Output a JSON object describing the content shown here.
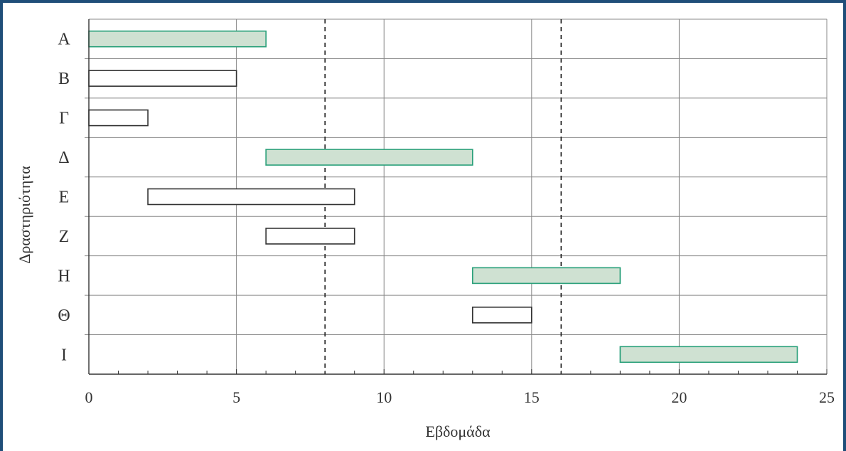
{
  "chart_data": {
    "type": "gantt",
    "xlabel": "Εβδομάδα",
    "ylabel": "Δραστηριότητα",
    "xlim": [
      0,
      25
    ],
    "xticks": [
      0,
      5,
      10,
      15,
      20,
      25
    ],
    "grid": true,
    "reference_lines": [
      8,
      16
    ],
    "colors": {
      "critical_fill": "#cfe1d2",
      "critical_stroke": "#2aa07a",
      "normal_fill": "#ffffff",
      "normal_stroke": "#333333",
      "grid": "#888888"
    },
    "tasks": [
      {
        "label": "A",
        "start": 0,
        "end": 6,
        "critical": true
      },
      {
        "label": "B",
        "start": 0,
        "end": 5,
        "critical": false
      },
      {
        "label": "Γ",
        "start": 0,
        "end": 2,
        "critical": false
      },
      {
        "label": "Δ",
        "start": 6,
        "end": 13,
        "critical": true
      },
      {
        "label": "E",
        "start": 2,
        "end": 9,
        "critical": false
      },
      {
        "label": "Z",
        "start": 6,
        "end": 9,
        "critical": false
      },
      {
        "label": "H",
        "start": 13,
        "end": 18,
        "critical": true
      },
      {
        "label": "Θ",
        "start": 13,
        "end": 15,
        "critical": false
      },
      {
        "label": "I",
        "start": 18,
        "end": 24,
        "critical": true
      }
    ]
  }
}
